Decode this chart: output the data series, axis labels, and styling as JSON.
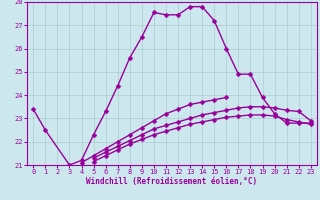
{
  "title": "",
  "xlabel": "Windchill (Refroidissement éolien,°C)",
  "background_color": "#cce8ee",
  "line_color": "#990099",
  "grid_color": "#aacccc",
  "x_values": [
    0,
    1,
    2,
    3,
    4,
    5,
    6,
    7,
    8,
    9,
    10,
    11,
    12,
    13,
    14,
    15,
    16,
    17,
    18,
    19,
    20,
    21,
    22,
    23
  ],
  "series1": [
    23.4,
    22.5,
    null,
    21.0,
    21.2,
    22.3,
    23.3,
    24.4,
    25.6,
    26.5,
    27.55,
    27.45,
    27.45,
    27.8,
    27.8,
    27.2,
    26.0,
    24.9,
    24.9,
    23.9,
    23.2,
    22.8,
    22.8,
    22.8
  ],
  "series2": [
    null,
    null,
    null,
    null,
    21.1,
    21.4,
    21.7,
    22.0,
    22.3,
    22.6,
    22.9,
    23.2,
    23.4,
    23.6,
    23.7,
    23.8,
    23.9,
    null,
    null,
    null,
    null,
    null,
    null,
    null
  ],
  "series3": [
    null,
    null,
    null,
    null,
    null,
    21.3,
    21.55,
    21.8,
    22.05,
    22.3,
    22.55,
    22.7,
    22.85,
    23.0,
    23.15,
    23.25,
    23.35,
    23.45,
    23.5,
    23.5,
    23.45,
    23.35,
    23.3,
    22.9
  ],
  "series4": [
    null,
    null,
    null,
    null,
    null,
    21.15,
    21.4,
    21.65,
    21.9,
    22.1,
    22.3,
    22.45,
    22.6,
    22.75,
    22.85,
    22.95,
    23.05,
    23.1,
    23.15,
    23.15,
    23.1,
    22.95,
    22.85,
    22.75
  ],
  "ylim": [
    21,
    28
  ],
  "yticks": [
    21,
    22,
    23,
    24,
    25,
    26,
    27,
    28
  ],
  "xticks": [
    0,
    1,
    2,
    3,
    4,
    5,
    6,
    7,
    8,
    9,
    10,
    11,
    12,
    13,
    14,
    15,
    16,
    17,
    18,
    19,
    20,
    21,
    22,
    23
  ],
  "marker": "D",
  "markersize": 2.5,
  "linewidth": 1.0,
  "axis_fontsize": 5.5,
  "tick_fontsize": 5.0
}
